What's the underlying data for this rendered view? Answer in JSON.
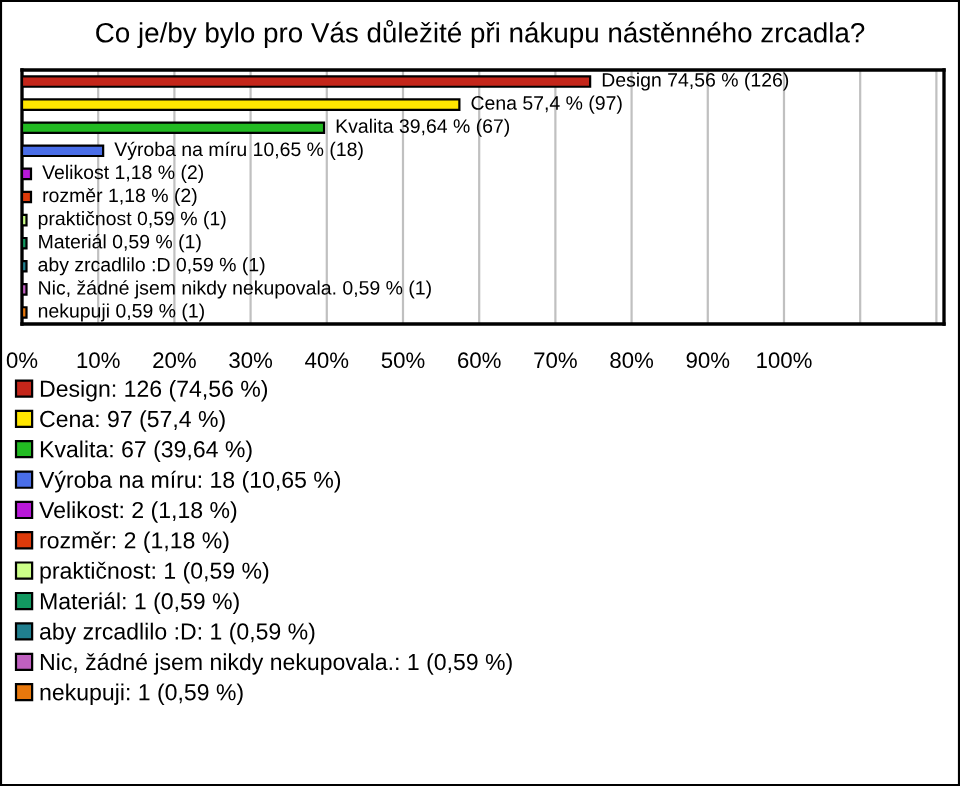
{
  "chart_data": {
    "type": "bar",
    "orientation": "horizontal",
    "stacked": true,
    "title": "Co je/by bylo pro Vás důležité při nákupu nástěnného zrcadla?",
    "categories": [
      null,
      null,
      null,
      null,
      null,
      null,
      null,
      null,
      null,
      null,
      null
    ],
    "series": [
      {
        "name": "Design: 126 (74,56 %)",
        "color": "#c4261a",
        "values": [
          74.56,
          null,
          null,
          null,
          null,
          null,
          null,
          null,
          null,
          null,
          null
        ]
      },
      {
        "name": "Cena: 97 (57,4 %)",
        "color": "#ffe600",
        "values": [
          null,
          57.4,
          null,
          null,
          null,
          null,
          null,
          null,
          null,
          null,
          null
        ]
      },
      {
        "name": "Kvalita: 67 (39,64 %)",
        "color": "#22bb22",
        "values": [
          null,
          null,
          39.64,
          null,
          null,
          null,
          null,
          null,
          null,
          null,
          null
        ]
      },
      {
        "name": "Výroba na míru: 18 (10,65 %)",
        "color": "#4a6ee8",
        "values": [
          null,
          null,
          null,
          10.65,
          null,
          null,
          null,
          null,
          null,
          null,
          null
        ]
      },
      {
        "name": "Velikost: 2 (1,18 %)",
        "color": "#b818d8",
        "values": [
          null,
          null,
          null,
          null,
          1.18,
          null,
          null,
          null,
          null,
          null,
          null
        ]
      },
      {
        "name": "rozměr: 2 (1,18 %)",
        "color": "#dd3a0a",
        "values": [
          null,
          null,
          null,
          null,
          null,
          1.18,
          null,
          null,
          null,
          null,
          null
        ]
      },
      {
        "name": "praktičnost: 1 (0,59 %)",
        "color": "#ccff88",
        "values": [
          null,
          null,
          null,
          null,
          null,
          null,
          0.59,
          null,
          null,
          null,
          null
        ]
      },
      {
        "name": "Materiál: 1 (0,59 %)",
        "color": "#129860",
        "values": [
          null,
          null,
          null,
          null,
          null,
          null,
          null,
          0.59,
          null,
          null,
          null
        ]
      },
      {
        "name": "aby zrcadlilo :D: 1 (0,59 %)",
        "color": "#207f8f",
        "values": [
          null,
          null,
          null,
          null,
          null,
          null,
          null,
          null,
          0.59,
          null,
          null
        ]
      },
      {
        "name": "Nic, žádné jsem nikdy nekupovala.: 1 (0,59 %)",
        "color": "#c060c0",
        "values": [
          null,
          null,
          null,
          null,
          null,
          null,
          null,
          null,
          null,
          0.59,
          null
        ]
      },
      {
        "name": "nekupuji: 1 (0,59 %)",
        "color": "#e8780c",
        "values": [
          null,
          null,
          null,
          null,
          null,
          null,
          null,
          null,
          null,
          null,
          0.59
        ]
      }
    ],
    "totals": [
      "Design 74,56 % (126)",
      "Cena 57,4 % (97)",
      "Kvalita 39,64 % (67)",
      "Výroba na míru 10,65 % (18)",
      "Velikost 1,18 % (2)",
      "rozměr 1,18 % (2)",
      "praktičnost 0,59 % (1)",
      "Materiál 0,59 % (1)",
      "aby zrcadlilo :D 0,59 % (1)",
      "Nic, žádné jsem nikdy nekupovala. 0,59 % (1)",
      "nekupuji 0,59 % (1)"
    ],
    "xlim": [
      0,
      121
    ],
    "xticks": [
      {
        "value": 0,
        "label": "0%"
      },
      {
        "value": 10,
        "label": "10%"
      },
      {
        "value": 20,
        "label": "20%"
      },
      {
        "value": 30,
        "label": "30%"
      },
      {
        "value": 40,
        "label": "40%"
      },
      {
        "value": 50,
        "label": "50%"
      },
      {
        "value": 60,
        "label": "60%"
      },
      {
        "value": 70,
        "label": "70%"
      },
      {
        "value": 80,
        "label": "80%"
      },
      {
        "value": 90,
        "label": "90%"
      },
      {
        "value": 100,
        "label": "100%"
      },
      {
        "value": 110,
        "label": null
      },
      {
        "value": 120,
        "label": null
      }
    ],
    "grid": "x",
    "legend": "bottom"
  }
}
